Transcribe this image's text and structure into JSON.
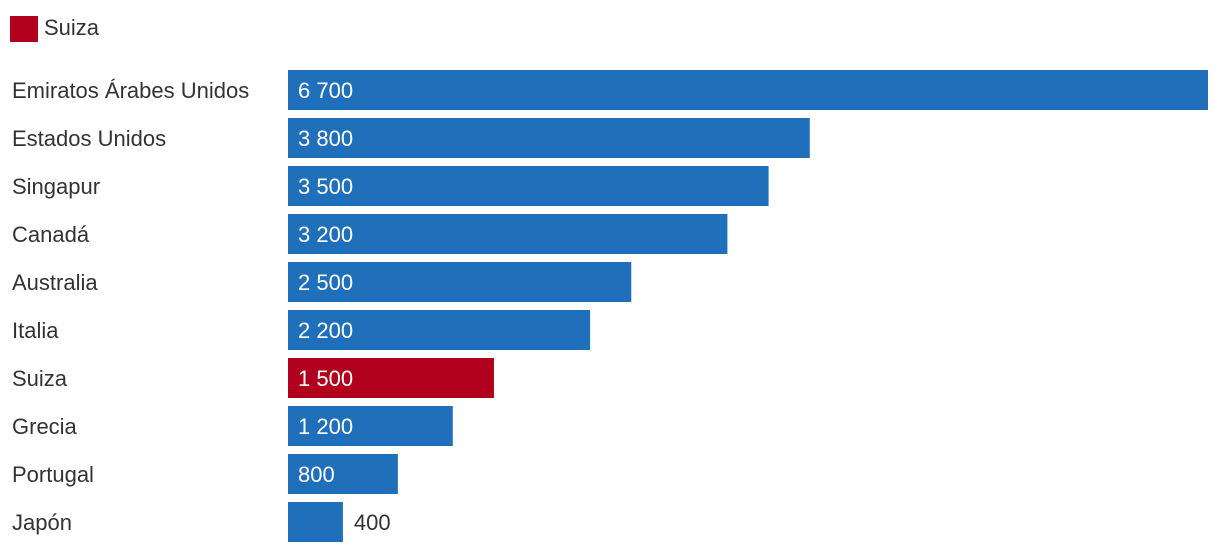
{
  "chart_data": {
    "type": "bar",
    "orientation": "horizontal",
    "categories": [
      "Emiratos Árabes Unidos",
      "Estados Unidos",
      "Singapur",
      "Canadá",
      "Australia",
      "Italia",
      "Suiza",
      "Grecia",
      "Portugal",
      "Japón"
    ],
    "values": [
      6700,
      3800,
      3500,
      3200,
      2500,
      2200,
      1500,
      1200,
      800,
      400
    ],
    "value_labels": [
      "6 700",
      "3 800",
      "3 500",
      "3 200",
      "2 500",
      "2 200",
      "1 500",
      "1 200",
      "800",
      "400"
    ],
    "highlight_category": "Suiza",
    "legend": [
      {
        "label": "Suiza",
        "color": "#b0001e"
      }
    ],
    "colors": {
      "default_bar": "#1f6fba",
      "highlight_bar": "#b0001e",
      "label_text": "#333333",
      "value_text_inside": "#ffffff",
      "value_text_outside": "#333333"
    },
    "xlim": [
      0,
      6700
    ],
    "grid": false,
    "legend_position": "top-left"
  }
}
